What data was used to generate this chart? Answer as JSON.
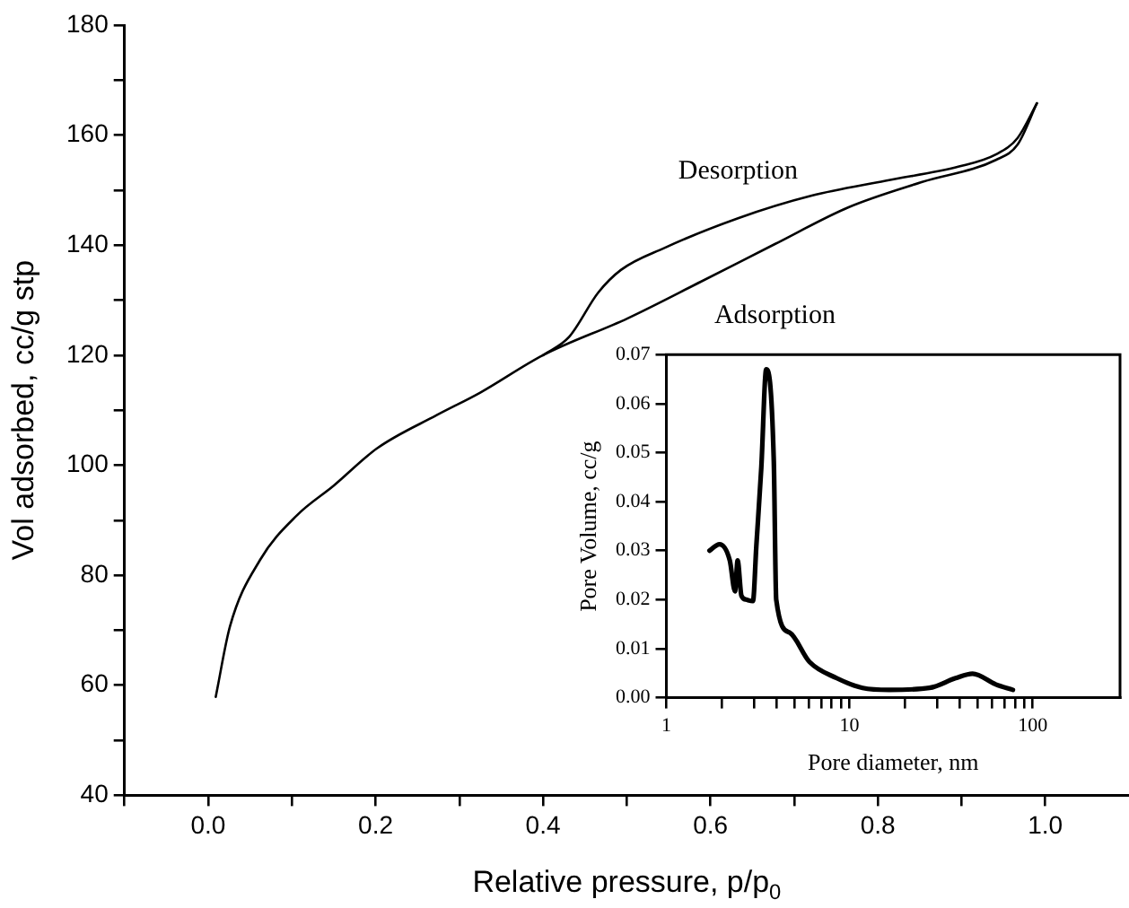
{
  "chart_data": [
    {
      "type": "line",
      "xlabel": "Relative pressure, p/p$_{0}$",
      "ylabel": "Vol adsorbed, cc/g stp",
      "xlim": [
        -0.1,
        1.1
      ],
      "ylim": [
        40,
        180
      ],
      "xticks": [
        {
          "value": -0.1,
          "label": null
        },
        {
          "value": 0,
          "label": "0.0"
        },
        {
          "value": 0.1,
          "label": null
        },
        {
          "value": 0.2,
          "label": "0.2"
        },
        {
          "value": 0.3,
          "label": null
        },
        {
          "value": 0.4,
          "label": "0.4"
        },
        {
          "value": 0.5,
          "label": null
        },
        {
          "value": 0.6,
          "label": "0.6"
        },
        {
          "value": 0.7,
          "label": null
        },
        {
          "value": 0.8,
          "label": "0.8"
        },
        {
          "value": 0.9,
          "label": null
        },
        {
          "value": 1,
          "label": "1.0"
        }
      ],
      "yticks": [
        40,
        {
          "value": 50,
          "label": null
        },
        60,
        {
          "value": 70,
          "label": null
        },
        80,
        {
          "value": 90,
          "label": null
        },
        100,
        {
          "value": 110,
          "label": null
        },
        120,
        {
          "value": 130,
          "label": null
        },
        140,
        {
          "value": 150,
          "label": null
        },
        160,
        {
          "value": 170,
          "label": null
        },
        180
      ],
      "grid": false,
      "legend": false,
      "marker": "none",
      "line_style": "solid",
      "series": [
        {
          "name": "Desorption",
          "color": "#000000",
          "x": [
            0.4,
            0.431,
            0.466,
            0.493,
            0.545,
            0.633,
            0.721,
            0.809,
            0.897,
            0.941,
            0.967,
            0.99
          ],
          "values": [
            120,
            123.3,
            131.4,
            135.5,
            139.5,
            144.9,
            149,
            151.7,
            154.3,
            156.5,
            159.5,
            165.8
          ]
        },
        {
          "name": "Adsorption",
          "color": "#000000",
          "x": [
            0.009,
            0.026,
            0.062,
            0.106,
            0.15,
            0.202,
            0.273,
            0.325,
            0.4,
            0.501,
            0.589,
            0.677,
            0.765,
            0.853,
            0.941,
            0.967,
            0.99
          ],
          "values": [
            57.9,
            70.7,
            82.8,
            90.9,
            96.3,
            103.1,
            109.1,
            113.2,
            120,
            126.7,
            133.4,
            140.2,
            146.9,
            151.5,
            155.5,
            158.3,
            165.8
          ]
        }
      ]
    },
    {
      "type": "line",
      "xlabel": "Pore diameter, nm",
      "ylabel": "Pore Volume, cc/g",
      "log": "x",
      "xlim": [
        1,
        300
      ],
      "ylim": [
        0,
        0.07
      ],
      "xticks": [
        1,
        {
          "value": 2,
          "label": null
        },
        {
          "value": 3,
          "label": null
        },
        {
          "value": 4,
          "label": null
        },
        {
          "value": 5,
          "label": null
        },
        {
          "value": 6,
          "label": null
        },
        {
          "value": 7,
          "label": null
        },
        {
          "value": 8,
          "label": null
        },
        {
          "value": 9,
          "label": null
        },
        10,
        {
          "value": 20,
          "label": null
        },
        {
          "value": 30,
          "label": null
        },
        {
          "value": 40,
          "label": null
        },
        {
          "value": 50,
          "label": null
        },
        {
          "value": 60,
          "label": null
        },
        {
          "value": 70,
          "label": null
        },
        {
          "value": 80,
          "label": null
        },
        {
          "value": 90,
          "label": null
        },
        100
      ],
      "yticks": [
        {
          "value": 0,
          "label": "0.00"
        },
        {
          "value": 0.01,
          "label": "0.01"
        },
        {
          "value": 0.02,
          "label": "0.02"
        },
        {
          "value": 0.03,
          "label": "0.03"
        },
        {
          "value": 0.04,
          "label": "0.04"
        },
        {
          "value": 0.05,
          "label": "0.05"
        },
        {
          "value": 0.06,
          "label": "0.06"
        },
        {
          "value": 0.07,
          "label": "0.07"
        }
      ],
      "grid": false,
      "legend": false,
      "marker": "none",
      "line_style": "solid",
      "series": [
        {
          "color": "#000000",
          "x": [
            1.72,
            1.95,
            2.22,
            2.37,
            2.45,
            2.57,
            2.73,
            2.97,
            3.1,
            3.3,
            3.51,
            3.86,
            3.98,
            4.7,
            6.05,
            8.5,
            11.8,
            16.5,
            27.3,
            38,
            47,
            63,
            78
          ],
          "values": [
            0.03,
            0.0313,
            0.028,
            0.0217,
            0.028,
            0.0208,
            0.02,
            0.0197,
            0.031,
            0.047,
            0.067,
            0.0483,
            0.02,
            0.0133,
            0.0073,
            0.004,
            0.002,
            0.0016,
            0.002,
            0.004,
            0.0049,
            0.0027,
            0.0016
          ]
        }
      ]
    }
  ]
}
